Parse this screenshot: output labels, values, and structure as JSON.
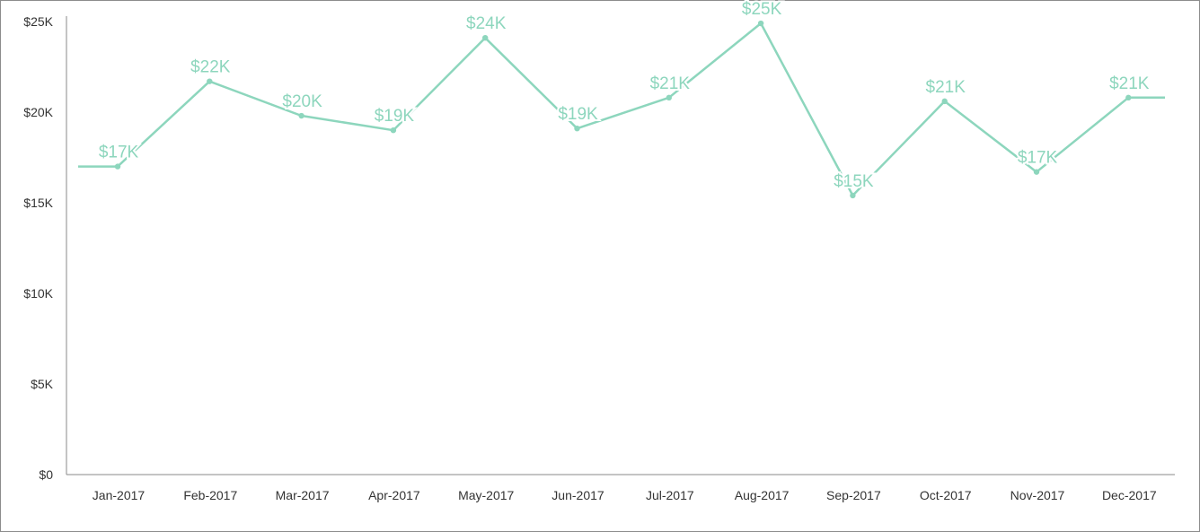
{
  "chart_data": {
    "type": "line",
    "title": "",
    "xlabel": "",
    "ylabel": "",
    "categories": [
      "Jan-2017",
      "Feb-2017",
      "Mar-2017",
      "Apr-2017",
      "May-2017",
      "Jun-2017",
      "Jul-2017",
      "Aug-2017",
      "Sep-2017",
      "Oct-2017",
      "Nov-2017",
      "Dec-2017"
    ],
    "series": [
      {
        "values": [
          17000,
          21700,
          19800,
          19000,
          24100,
          19100,
          20800,
          24900,
          15400,
          20600,
          16700,
          20800
        ],
        "labels": [
          "$17K",
          "$22K",
          "$20K",
          "$19K",
          "$24K",
          "$19K",
          "$21K",
          "$25K",
          "$15K",
          "$21K",
          "$17K",
          "$21K"
        ]
      }
    ],
    "ylim": [
      0,
      25000
    ],
    "yticks": [
      0,
      5000,
      10000,
      15000,
      20000,
      25000
    ],
    "ytick_labels": [
      "$0",
      "$5K",
      "$10K",
      "$15K",
      "$20K",
      "$25K"
    ],
    "grid": false,
    "legend": "none",
    "line_color": "#8dd6bd"
  }
}
